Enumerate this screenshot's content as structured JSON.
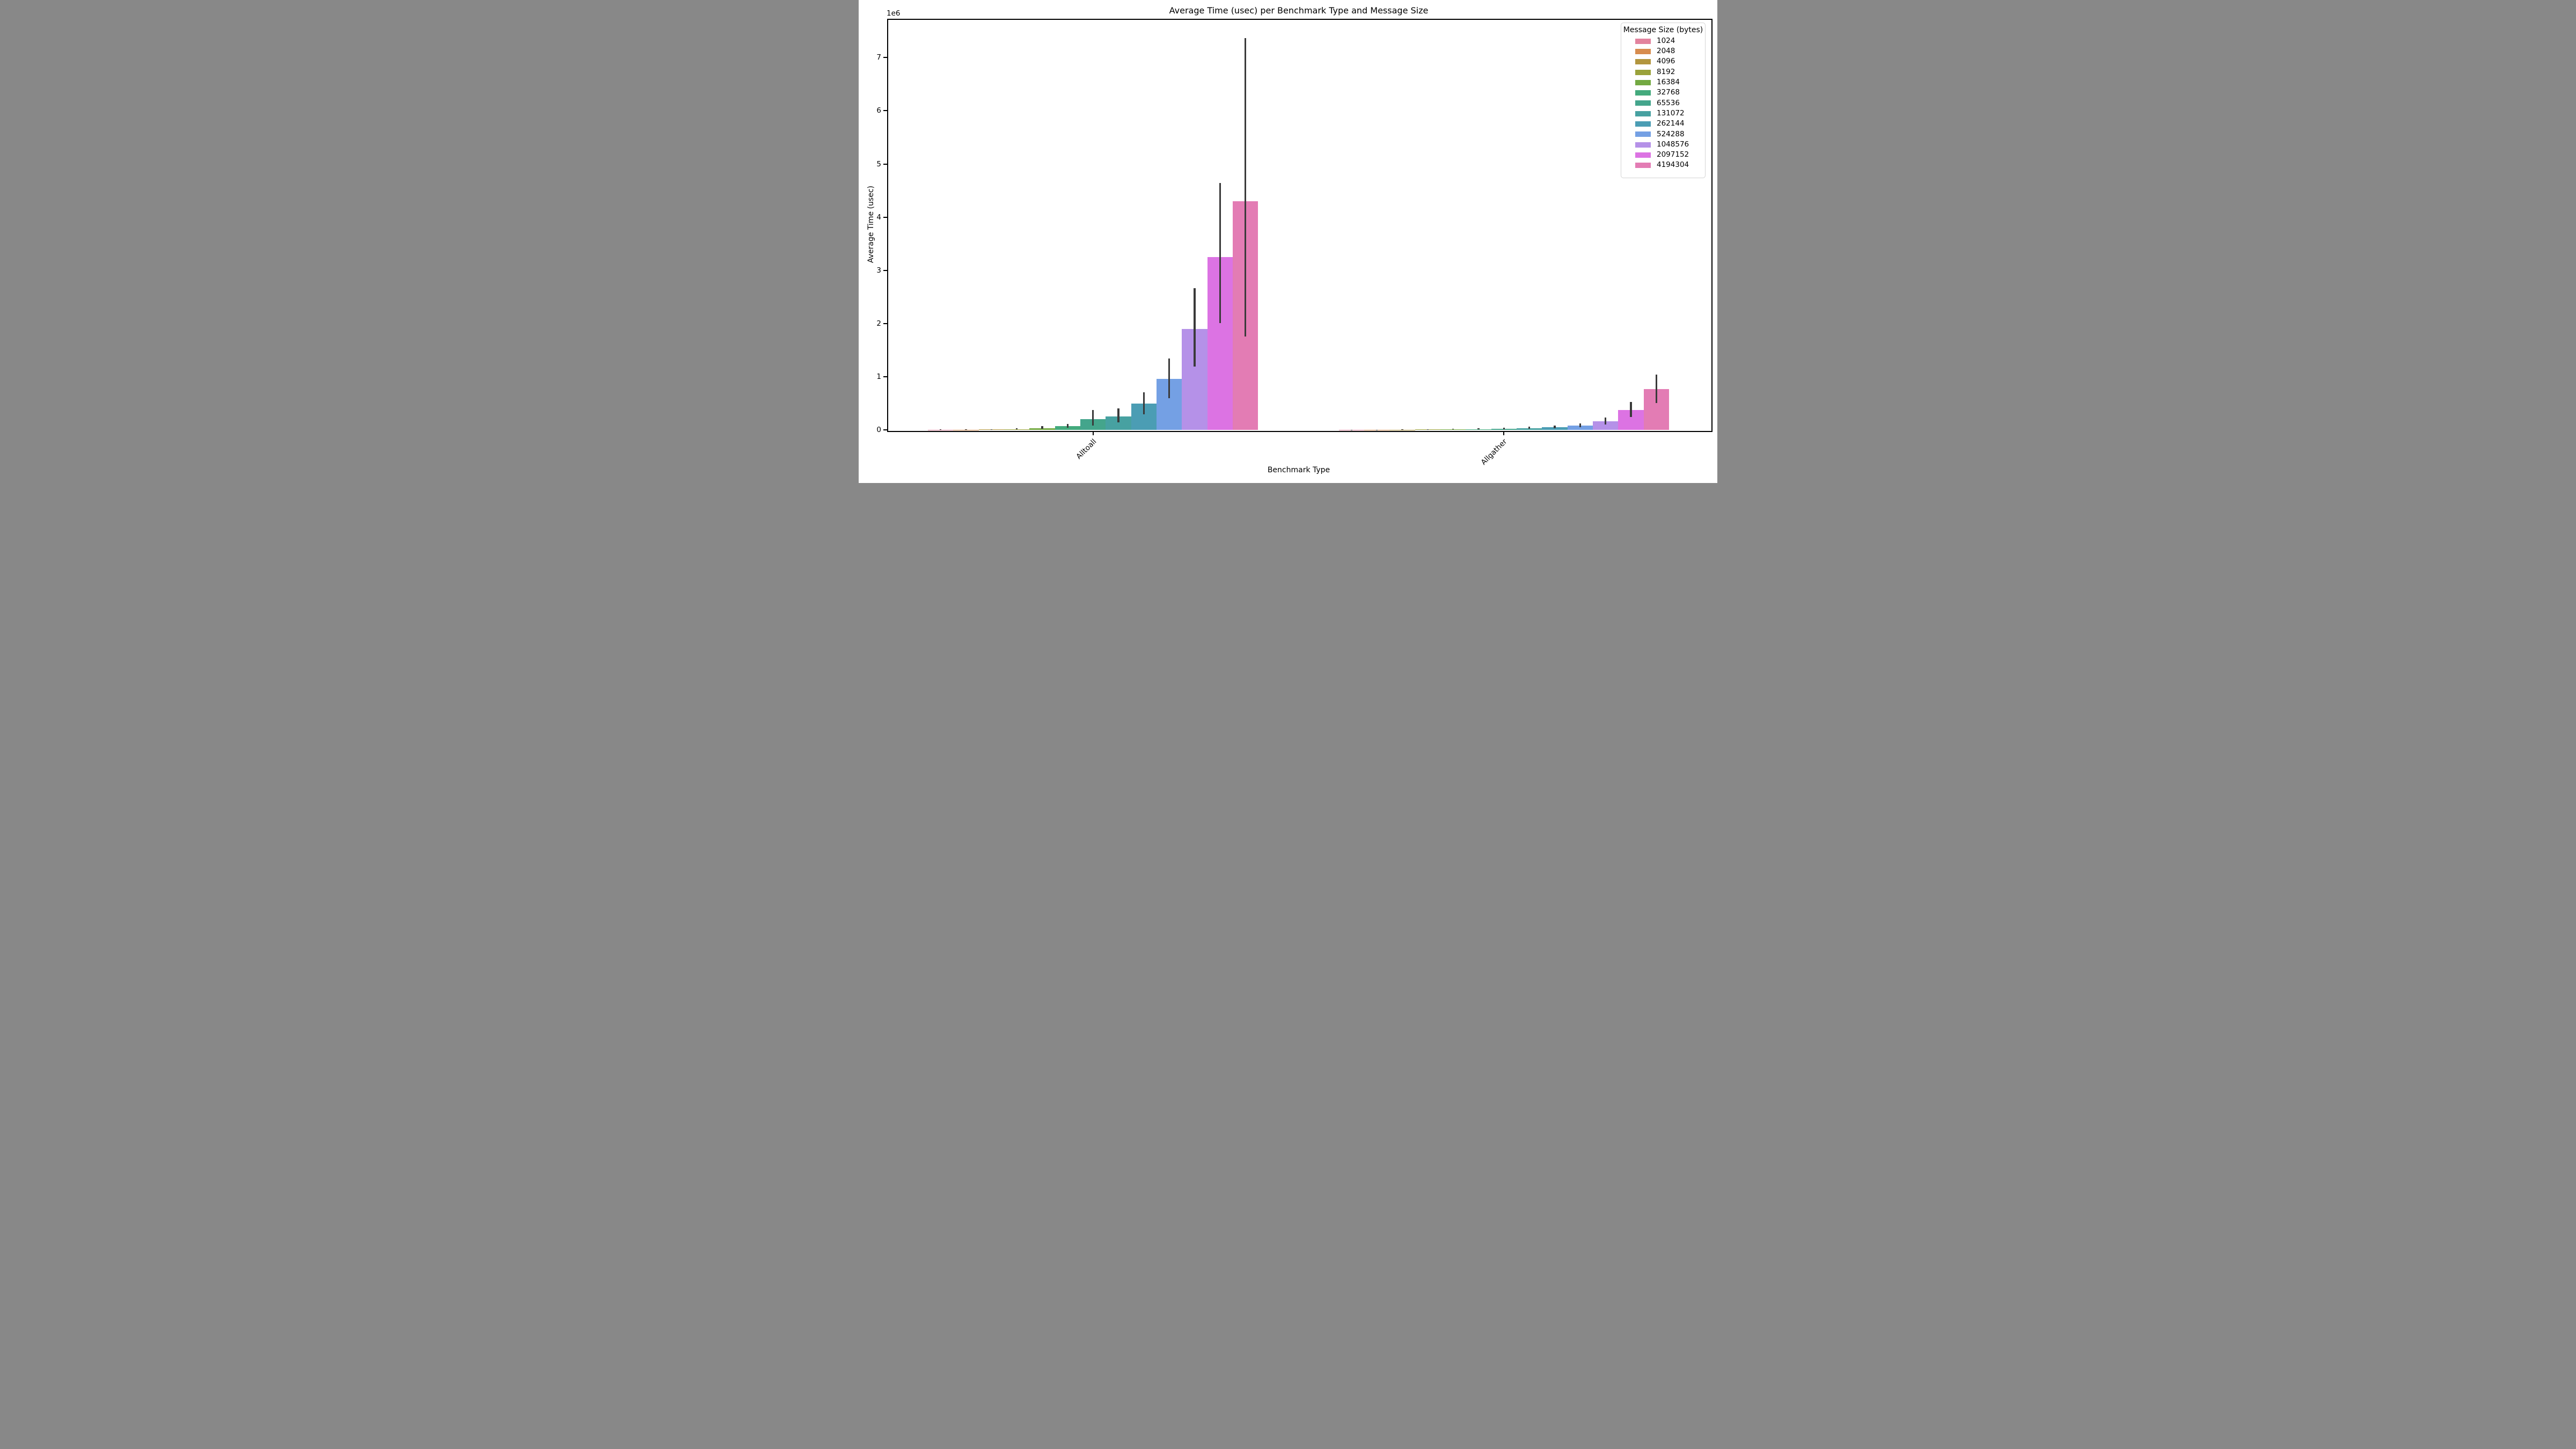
{
  "title": "Average Time (usec) per Benchmark Type and Message Size",
  "axes": {
    "xlabel": "Benchmark Type",
    "ylabel": "Average Time (usec)",
    "offset_text": "1e6",
    "ytick_labels": [
      "0",
      "1",
      "2",
      "3",
      "4",
      "5",
      "6",
      "7"
    ],
    "categories": [
      "Alltoall",
      "Allgather"
    ]
  },
  "legend": {
    "title": "Message Size (bytes)"
  },
  "chart_data": {
    "type": "bar",
    "title": "Average Time (usec) per Benchmark Type and Message Size",
    "xlabel": "Benchmark Type",
    "ylabel": "Average Time (usec)",
    "categories": [
      "Alltoall",
      "Allgather"
    ],
    "hue_title": "Message Size (bytes)",
    "ylim": [
      0,
      7500000
    ],
    "yticks": [
      0,
      1000000,
      2000000,
      3000000,
      4000000,
      5000000,
      6000000,
      7000000
    ],
    "y_offset_label": "1e6",
    "grid": false,
    "legend_position": "upper right",
    "error_bar_color": "#3a3a3a",
    "spine_color": "#000000",
    "background": "#ffffff",
    "series": [
      {
        "name": "1024",
        "color": "#e2839e",
        "values": [
          3000,
          1500
        ],
        "ci": [
          [
            1000,
            6000
          ],
          [
            800,
            3000
          ]
        ]
      },
      {
        "name": "2048",
        "color": "#d78c4e",
        "values": [
          4500,
          2500
        ],
        "ci": [
          [
            2000,
            8000
          ],
          [
            1500,
            5000
          ]
        ]
      },
      {
        "name": "4096",
        "color": "#b2953e",
        "values": [
          6000,
          4000
        ],
        "ci": [
          [
            3000,
            12000
          ],
          [
            2000,
            8000
          ]
        ]
      },
      {
        "name": "8192",
        "color": "#9aa23a",
        "values": [
          14000,
          7000
        ],
        "ci": [
          [
            7000,
            30000
          ],
          [
            4000,
            14000
          ]
        ]
      },
      {
        "name": "16384",
        "color": "#73a942",
        "values": [
          30000,
          12000
        ],
        "ci": [
          [
            22000,
            75000
          ],
          [
            7000,
            25000
          ]
        ]
      },
      {
        "name": "32768",
        "color": "#44aa7d",
        "values": [
          68000,
          14000
        ],
        "ci": [
          [
            45000,
            110000
          ],
          [
            9000,
            28000
          ]
        ]
      },
      {
        "name": "65536",
        "color": "#44a58c",
        "values": [
          205000,
          20000
        ],
        "ci": [
          [
            80000,
            375000
          ],
          [
            12000,
            45000
          ]
        ]
      },
      {
        "name": "131072",
        "color": "#47a1a1",
        "values": [
          250000,
          33000
        ],
        "ci": [
          [
            145000,
            400000
          ],
          [
            20000,
            57000
          ]
        ]
      },
      {
        "name": "262144",
        "color": "#4b9db4",
        "values": [
          490000,
          48000
        ],
        "ci": [
          [
            290000,
            705000
          ],
          [
            30000,
            84000
          ]
        ]
      },
      {
        "name": "524288",
        "color": "#74a0e4",
        "values": [
          960000,
          85000
        ],
        "ci": [
          [
            600000,
            1340000
          ],
          [
            47000,
            120000
          ]
        ]
      },
      {
        "name": "1048576",
        "color": "#b591e8",
        "values": [
          1900000,
          165000
        ],
        "ci": [
          [
            1190000,
            2660000
          ],
          [
            98000,
            230000
          ]
        ]
      },
      {
        "name": "2097152",
        "color": "#dc73e3",
        "values": [
          3250000,
          375000
        ],
        "ci": [
          [
            2010000,
            4640000
          ],
          [
            240000,
            520000
          ]
        ]
      },
      {
        "name": "4194304",
        "color": "#e37cb4",
        "values": [
          4300000,
          770000
        ],
        "ci": [
          [
            1760000,
            7370000
          ],
          [
            500000,
            1040000
          ]
        ]
      }
    ]
  }
}
